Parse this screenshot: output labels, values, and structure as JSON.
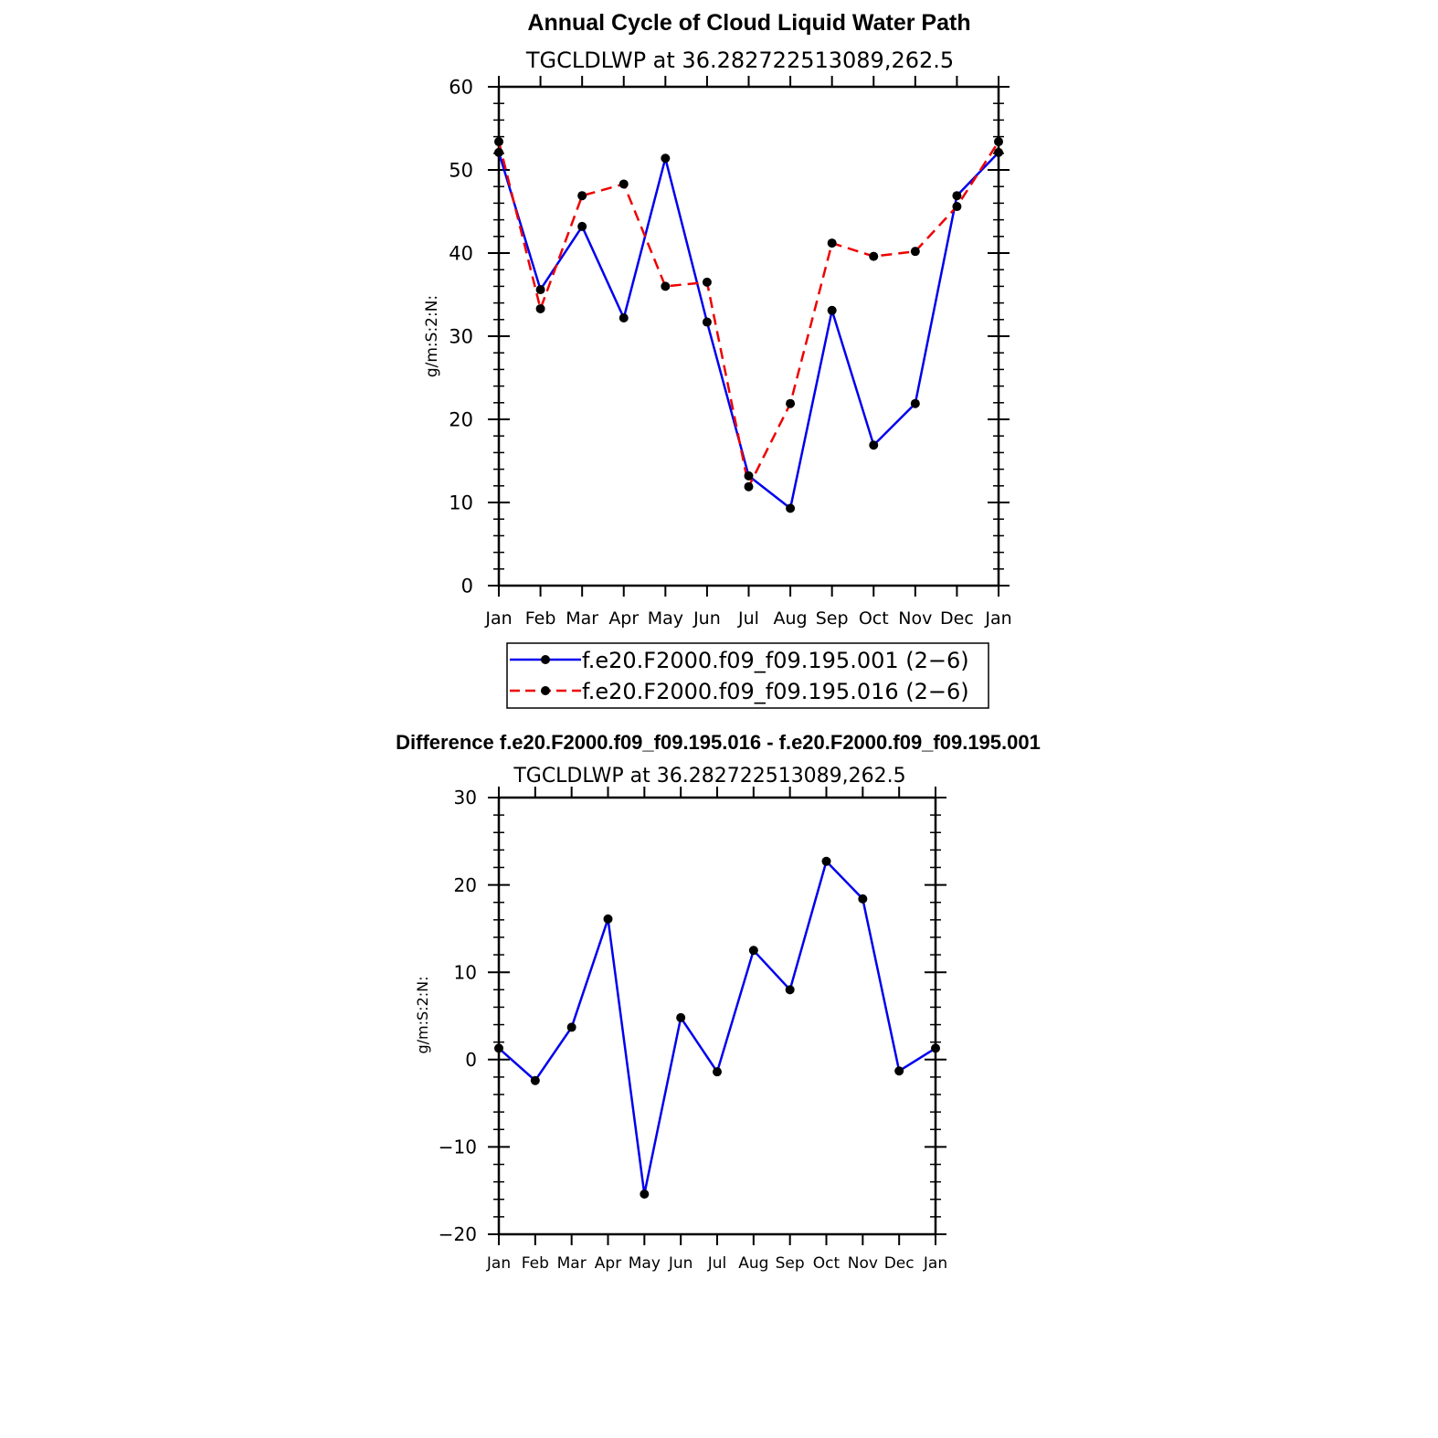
{
  "chart_data": [
    {
      "type": "line",
      "title": "Annual Cycle of Cloud Liquid Water Path",
      "subtitle": "TGCLDLWP  at  36.282722513089,262.5",
      "ylabel": "g/m:S:2:N:",
      "ylim": [
        0,
        60
      ],
      "yticks": [
        "0",
        "10",
        "20",
        "30",
        "40",
        "50",
        "60"
      ],
      "categories": [
        "Jan",
        "Feb",
        "Mar",
        "Apr",
        "May",
        "Jun",
        "Jul",
        "Aug",
        "Sep",
        "Oct",
        "Nov",
        "Dec",
        "Jan"
      ],
      "series": [
        {
          "name": "f.e20.F2000.f09_f09.195.001 (2−6)",
          "color": "#0000ee",
          "dash": "solid",
          "values": [
            52.1,
            35.6,
            43.2,
            32.2,
            51.4,
            31.7,
            13.2,
            9.3,
            33.1,
            16.9,
            21.9,
            46.9,
            52.1
          ]
        },
        {
          "name": "f.e20.F2000.f09_f09.195.016 (2−6)",
          "color": "#ee0000",
          "dash": "dashed",
          "values": [
            53.4,
            33.3,
            46.9,
            48.3,
            36.0,
            36.5,
            11.9,
            21.9,
            41.2,
            39.6,
            40.2,
            45.6,
            53.4
          ]
        }
      ]
    },
    {
      "type": "line",
      "title": "Difference f.e20.F2000.f09_f09.195.016 - f.e20.F2000.f09_f09.195.001",
      "subtitle": "TGCLDLWP  at  36.282722513089,262.5",
      "ylabel": "g/m:S:2:N:",
      "ylim": [
        -20,
        30
      ],
      "yticks": [
        "−20",
        "−10",
        "0",
        "10",
        "20",
        "30"
      ],
      "categories": [
        "Jan",
        "Feb",
        "Mar",
        "Apr",
        "May",
        "Jun",
        "Jul",
        "Aug",
        "Sep",
        "Oct",
        "Nov",
        "Dec",
        "Jan"
      ],
      "series": [
        {
          "name": "difference",
          "color": "#0000ee",
          "dash": "solid",
          "values": [
            1.3,
            -2.4,
            3.7,
            16.1,
            -15.4,
            4.8,
            -1.4,
            12.5,
            8.0,
            22.7,
            18.4,
            -1.3,
            1.3
          ]
        }
      ]
    }
  ]
}
